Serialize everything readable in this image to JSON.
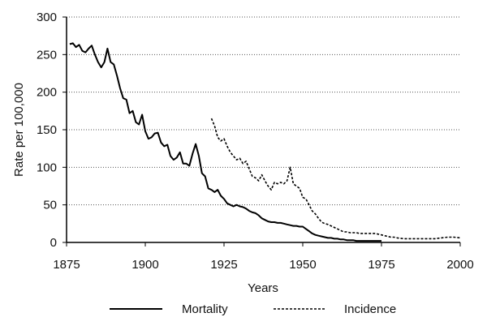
{
  "chart_data": {
    "type": "line",
    "title": "",
    "xlabel": "Years",
    "ylabel": "Rate per 100,000",
    "xlim": [
      1875,
      2000
    ],
    "ylim": [
      0,
      300
    ],
    "x_ticks": [
      "1875",
      "1900",
      "1925",
      "1950",
      "1975",
      "2000"
    ],
    "y_ticks": [
      "0",
      "50",
      "100",
      "150",
      "200",
      "250",
      "300"
    ],
    "grid": "horizontal dotted",
    "legend_position": "bottom",
    "series": [
      {
        "name": "Mortality",
        "style": "solid",
        "color": "#000000",
        "points": [
          [
            1876,
            264
          ],
          [
            1877,
            265
          ],
          [
            1878,
            260
          ],
          [
            1879,
            263
          ],
          [
            1880,
            255
          ],
          [
            1881,
            253
          ],
          [
            1882,
            258
          ],
          [
            1883,
            262
          ],
          [
            1884,
            250
          ],
          [
            1885,
            240
          ],
          [
            1886,
            233
          ],
          [
            1887,
            240
          ],
          [
            1888,
            258
          ],
          [
            1889,
            240
          ],
          [
            1890,
            237
          ],
          [
            1891,
            222
          ],
          [
            1892,
            205
          ],
          [
            1893,
            192
          ],
          [
            1894,
            190
          ],
          [
            1895,
            172
          ],
          [
            1896,
            175
          ],
          [
            1897,
            160
          ],
          [
            1898,
            157
          ],
          [
            1899,
            170
          ],
          [
            1900,
            148
          ],
          [
            1901,
            138
          ],
          [
            1902,
            140
          ],
          [
            1903,
            145
          ],
          [
            1904,
            146
          ],
          [
            1905,
            133
          ],
          [
            1906,
            128
          ],
          [
            1907,
            130
          ],
          [
            1908,
            115
          ],
          [
            1909,
            110
          ],
          [
            1910,
            113
          ],
          [
            1911,
            120
          ],
          [
            1912,
            105
          ],
          [
            1913,
            105
          ],
          [
            1914,
            102
          ],
          [
            1915,
            118
          ],
          [
            1916,
            131
          ],
          [
            1917,
            115
          ],
          [
            1918,
            92
          ],
          [
            1919,
            88
          ],
          [
            1920,
            72
          ],
          [
            1921,
            70
          ],
          [
            1922,
            67
          ],
          [
            1923,
            70
          ],
          [
            1924,
            62
          ],
          [
            1925,
            58
          ],
          [
            1926,
            52
          ],
          [
            1927,
            50
          ],
          [
            1928,
            48
          ],
          [
            1929,
            50
          ],
          [
            1930,
            48
          ],
          [
            1931,
            47
          ],
          [
            1932,
            45
          ],
          [
            1933,
            42
          ],
          [
            1934,
            40
          ],
          [
            1935,
            39
          ],
          [
            1936,
            36
          ],
          [
            1937,
            32
          ],
          [
            1938,
            30
          ],
          [
            1939,
            28
          ],
          [
            1940,
            27
          ],
          [
            1941,
            27
          ],
          [
            1942,
            26
          ],
          [
            1943,
            26
          ],
          [
            1944,
            25
          ],
          [
            1945,
            24
          ],
          [
            1946,
            23
          ],
          [
            1947,
            22
          ],
          [
            1948,
            22
          ],
          [
            1949,
            21
          ],
          [
            1950,
            21
          ],
          [
            1951,
            18
          ],
          [
            1952,
            15
          ],
          [
            1953,
            12
          ],
          [
            1954,
            10
          ],
          [
            1955,
            9
          ],
          [
            1956,
            8
          ],
          [
            1957,
            7
          ],
          [
            1958,
            6
          ],
          [
            1959,
            6
          ],
          [
            1960,
            5
          ],
          [
            1961,
            5
          ],
          [
            1962,
            4
          ],
          [
            1963,
            4
          ],
          [
            1964,
            3
          ],
          [
            1965,
            3
          ],
          [
            1966,
            3
          ],
          [
            1967,
            2
          ],
          [
            1968,
            2
          ],
          [
            1969,
            2
          ],
          [
            1970,
            2
          ],
          [
            1971,
            2
          ],
          [
            1972,
            2
          ],
          [
            1973,
            2
          ],
          [
            1974,
            2
          ],
          [
            1975,
            2
          ]
        ]
      },
      {
        "name": "Incidence",
        "style": "dashed",
        "color": "#000000",
        "points": [
          [
            1921,
            165
          ],
          [
            1922,
            155
          ],
          [
            1923,
            140
          ],
          [
            1924,
            135
          ],
          [
            1925,
            138
          ],
          [
            1926,
            128
          ],
          [
            1927,
            120
          ],
          [
            1928,
            115
          ],
          [
            1929,
            110
          ],
          [
            1930,
            112
          ],
          [
            1931,
            105
          ],
          [
            1932,
            108
          ],
          [
            1933,
            98
          ],
          [
            1934,
            88
          ],
          [
            1935,
            86
          ],
          [
            1936,
            82
          ],
          [
            1937,
            90
          ],
          [
            1938,
            82
          ],
          [
            1939,
            75
          ],
          [
            1940,
            70
          ],
          [
            1941,
            80
          ],
          [
            1942,
            78
          ],
          [
            1943,
            80
          ],
          [
            1944,
            78
          ],
          [
            1945,
            82
          ],
          [
            1946,
            100
          ],
          [
            1947,
            78
          ],
          [
            1948,
            75
          ],
          [
            1949,
            72
          ],
          [
            1950,
            60
          ],
          [
            1951,
            58
          ],
          [
            1952,
            50
          ],
          [
            1953,
            42
          ],
          [
            1954,
            38
          ],
          [
            1955,
            32
          ],
          [
            1956,
            27
          ],
          [
            1957,
            25
          ],
          [
            1958,
            24
          ],
          [
            1959,
            22
          ],
          [
            1960,
            20
          ],
          [
            1961,
            18
          ],
          [
            1962,
            16
          ],
          [
            1963,
            14
          ],
          [
            1964,
            14
          ],
          [
            1965,
            13
          ],
          [
            1966,
            13
          ],
          [
            1967,
            13
          ],
          [
            1968,
            12
          ],
          [
            1969,
            12
          ],
          [
            1970,
            12
          ],
          [
            1971,
            12
          ],
          [
            1972,
            12
          ],
          [
            1973,
            12
          ],
          [
            1974,
            11
          ],
          [
            1975,
            10
          ],
          [
            1976,
            9
          ],
          [
            1977,
            8
          ],
          [
            1978,
            7
          ],
          [
            1979,
            7
          ],
          [
            1980,
            6
          ],
          [
            1982,
            5
          ],
          [
            1984,
            5
          ],
          [
            1986,
            5
          ],
          [
            1988,
            5
          ],
          [
            1990,
            5
          ],
          [
            1992,
            5
          ],
          [
            1994,
            6
          ],
          [
            1996,
            7
          ],
          [
            1998,
            7
          ],
          [
            2000,
            6
          ]
        ]
      }
    ]
  }
}
